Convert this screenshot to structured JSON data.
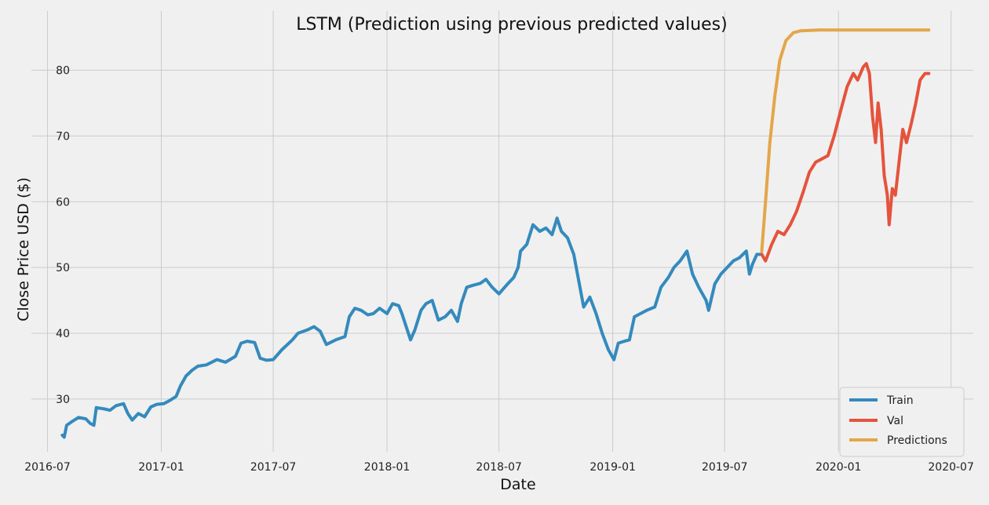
{
  "figure": {
    "background": "#f0f0f0"
  },
  "chart_data": {
    "type": "line",
    "title": "LSTM (Prediction using previous predicted values)",
    "xlabel": "Date",
    "ylabel": "Close Price USD ($)",
    "x_axis": "date",
    "xlim": [
      "2016-06-05",
      "2020-08-06"
    ],
    "ylim": [
      22,
      89
    ],
    "xticks": [
      "2016-07",
      "2017-01",
      "2017-07",
      "2018-01",
      "2018-07",
      "2019-01",
      "2019-07",
      "2020-01",
      "2020-07"
    ],
    "yticks": [
      30,
      40,
      50,
      60,
      70,
      80
    ],
    "grid": true,
    "legend_position": "bottom-right",
    "series": [
      {
        "name": "Train",
        "color": "#348abd",
        "points": [
          [
            "2016-07-25",
            24.5
          ],
          [
            "2016-07-28",
            24.2
          ],
          [
            "2016-08-01",
            26.0
          ],
          [
            "2016-08-10",
            26.6
          ],
          [
            "2016-08-20",
            27.2
          ],
          [
            "2016-09-01",
            27.0
          ],
          [
            "2016-09-08",
            26.3
          ],
          [
            "2016-09-14",
            26.0
          ],
          [
            "2016-09-18",
            28.7
          ],
          [
            "2016-10-01",
            28.5
          ],
          [
            "2016-10-10",
            28.3
          ],
          [
            "2016-10-20",
            29.0
          ],
          [
            "2016-11-01",
            29.3
          ],
          [
            "2016-11-08",
            27.8
          ],
          [
            "2016-11-15",
            26.8
          ],
          [
            "2016-11-25",
            27.8
          ],
          [
            "2016-12-05",
            27.3
          ],
          [
            "2016-12-15",
            28.8
          ],
          [
            "2016-12-25",
            29.2
          ],
          [
            "2017-01-05",
            29.3
          ],
          [
            "2017-01-15",
            29.8
          ],
          [
            "2017-01-25",
            30.4
          ],
          [
            "2017-02-01",
            32.0
          ],
          [
            "2017-02-10",
            33.5
          ],
          [
            "2017-02-20",
            34.4
          ],
          [
            "2017-03-01",
            35.0
          ],
          [
            "2017-03-15",
            35.2
          ],
          [
            "2017-04-01",
            36.0
          ],
          [
            "2017-04-15",
            35.6
          ],
          [
            "2017-05-01",
            36.5
          ],
          [
            "2017-05-10",
            38.5
          ],
          [
            "2017-05-20",
            38.8
          ],
          [
            "2017-06-01",
            38.6
          ],
          [
            "2017-06-10",
            36.2
          ],
          [
            "2017-06-20",
            35.9
          ],
          [
            "2017-07-01",
            36.0
          ],
          [
            "2017-07-15",
            37.5
          ],
          [
            "2017-08-01",
            39.0
          ],
          [
            "2017-08-10",
            40.0
          ],
          [
            "2017-08-25",
            40.5
          ],
          [
            "2017-09-05",
            41.0
          ],
          [
            "2017-09-15",
            40.3
          ],
          [
            "2017-09-25",
            38.3
          ],
          [
            "2017-10-10",
            39.0
          ],
          [
            "2017-10-25",
            39.5
          ],
          [
            "2017-11-01",
            42.5
          ],
          [
            "2017-11-10",
            43.8
          ],
          [
            "2017-11-20",
            43.5
          ],
          [
            "2017-12-01",
            42.8
          ],
          [
            "2017-12-10",
            43.0
          ],
          [
            "2017-12-20",
            43.8
          ],
          [
            "2018-01-01",
            43.0
          ],
          [
            "2018-01-10",
            44.5
          ],
          [
            "2018-01-20",
            44.2
          ],
          [
            "2018-01-25",
            43.0
          ],
          [
            "2018-02-01",
            41.0
          ],
          [
            "2018-02-08",
            39.0
          ],
          [
            "2018-02-15",
            40.5
          ],
          [
            "2018-02-25",
            43.5
          ],
          [
            "2018-03-05",
            44.5
          ],
          [
            "2018-03-15",
            45.0
          ],
          [
            "2018-03-25",
            42.0
          ],
          [
            "2018-04-05",
            42.5
          ],
          [
            "2018-04-15",
            43.5
          ],
          [
            "2018-04-25",
            41.8
          ],
          [
            "2018-05-01",
            44.5
          ],
          [
            "2018-05-10",
            47.0
          ],
          [
            "2018-05-20",
            47.3
          ],
          [
            "2018-06-01",
            47.6
          ],
          [
            "2018-06-10",
            48.2
          ],
          [
            "2018-06-20",
            47.0
          ],
          [
            "2018-07-01",
            46.0
          ],
          [
            "2018-07-15",
            47.5
          ],
          [
            "2018-07-25",
            48.5
          ],
          [
            "2018-08-01",
            50.0
          ],
          [
            "2018-08-05",
            52.5
          ],
          [
            "2018-08-15",
            53.5
          ],
          [
            "2018-08-25",
            56.5
          ],
          [
            "2018-09-05",
            55.5
          ],
          [
            "2018-09-15",
            56.0
          ],
          [
            "2018-09-25",
            55.0
          ],
          [
            "2018-10-03",
            57.5
          ],
          [
            "2018-10-10",
            55.5
          ],
          [
            "2018-10-20",
            54.5
          ],
          [
            "2018-10-30",
            52.0
          ],
          [
            "2018-11-05",
            49.0
          ],
          [
            "2018-11-15",
            44.0
          ],
          [
            "2018-11-25",
            45.5
          ],
          [
            "2018-12-05",
            43.0
          ],
          [
            "2018-12-15",
            40.0
          ],
          [
            "2018-12-25",
            37.5
          ],
          [
            "2019-01-03",
            36.0
          ],
          [
            "2019-01-10",
            38.5
          ],
          [
            "2019-01-20",
            38.8
          ],
          [
            "2019-01-28",
            39.0
          ],
          [
            "2019-02-05",
            42.5
          ],
          [
            "2019-02-15",
            43.0
          ],
          [
            "2019-02-25",
            43.5
          ],
          [
            "2019-03-10",
            44.0
          ],
          [
            "2019-03-20",
            47.0
          ],
          [
            "2019-04-01",
            48.5
          ],
          [
            "2019-04-10",
            50.0
          ],
          [
            "2019-04-20",
            51.0
          ],
          [
            "2019-05-01",
            52.5
          ],
          [
            "2019-05-10",
            49.0
          ],
          [
            "2019-05-20",
            47.0
          ],
          [
            "2019-06-01",
            45.0
          ],
          [
            "2019-06-05",
            43.5
          ],
          [
            "2019-06-15",
            47.5
          ],
          [
            "2019-06-25",
            49.0
          ],
          [
            "2019-07-05",
            50.0
          ],
          [
            "2019-07-15",
            51.0
          ],
          [
            "2019-07-25",
            51.5
          ],
          [
            "2019-08-05",
            52.5
          ],
          [
            "2019-08-10",
            49.0
          ],
          [
            "2019-08-15",
            50.5
          ],
          [
            "2019-08-22",
            52.0
          ],
          [
            "2019-08-30",
            52.0
          ]
        ]
      },
      {
        "name": "Val",
        "color": "#e5533c",
        "points": [
          [
            "2019-08-30",
            52.0
          ],
          [
            "2019-09-05",
            51.0
          ],
          [
            "2019-09-15",
            53.5
          ],
          [
            "2019-09-25",
            55.5
          ],
          [
            "2019-10-05",
            55.0
          ],
          [
            "2019-10-15",
            56.5
          ],
          [
            "2019-10-25",
            58.5
          ],
          [
            "2019-11-05",
            61.5
          ],
          [
            "2019-11-15",
            64.5
          ],
          [
            "2019-11-25",
            66.0
          ],
          [
            "2019-12-05",
            66.5
          ],
          [
            "2019-12-15",
            67.0
          ],
          [
            "2019-12-25",
            70.0
          ],
          [
            "2020-01-05",
            74.0
          ],
          [
            "2020-01-15",
            77.5
          ],
          [
            "2020-01-25",
            79.5
          ],
          [
            "2020-02-01",
            78.5
          ],
          [
            "2020-02-10",
            80.5
          ],
          [
            "2020-02-15",
            81.0
          ],
          [
            "2020-02-20",
            79.5
          ],
          [
            "2020-02-25",
            73.0
          ],
          [
            "2020-03-01",
            69.0
          ],
          [
            "2020-03-05",
            75.0
          ],
          [
            "2020-03-10",
            71.0
          ],
          [
            "2020-03-15",
            64.0
          ],
          [
            "2020-03-20",
            61.0
          ],
          [
            "2020-03-23",
            56.5
          ],
          [
            "2020-03-28",
            62.0
          ],
          [
            "2020-04-02",
            61.0
          ],
          [
            "2020-04-08",
            66.0
          ],
          [
            "2020-04-14",
            71.0
          ],
          [
            "2020-04-20",
            69.0
          ],
          [
            "2020-04-28",
            72.0
          ],
          [
            "2020-05-05",
            75.0
          ],
          [
            "2020-05-12",
            78.5
          ],
          [
            "2020-05-20",
            79.5
          ],
          [
            "2020-05-26",
            79.5
          ]
        ]
      },
      {
        "name": "Predictions",
        "color": "#e3a64a",
        "points": [
          [
            "2019-08-30",
            52.5
          ],
          [
            "2019-09-05",
            60.0
          ],
          [
            "2019-09-12",
            69.0
          ],
          [
            "2019-09-20",
            76.0
          ],
          [
            "2019-09-28",
            81.5
          ],
          [
            "2019-10-08",
            84.5
          ],
          [
            "2019-10-20",
            85.7
          ],
          [
            "2019-11-01",
            86.0
          ],
          [
            "2019-12-01",
            86.1
          ],
          [
            "2020-01-01",
            86.1
          ],
          [
            "2020-03-01",
            86.1
          ],
          [
            "2020-05-26",
            86.1
          ]
        ]
      }
    ]
  }
}
